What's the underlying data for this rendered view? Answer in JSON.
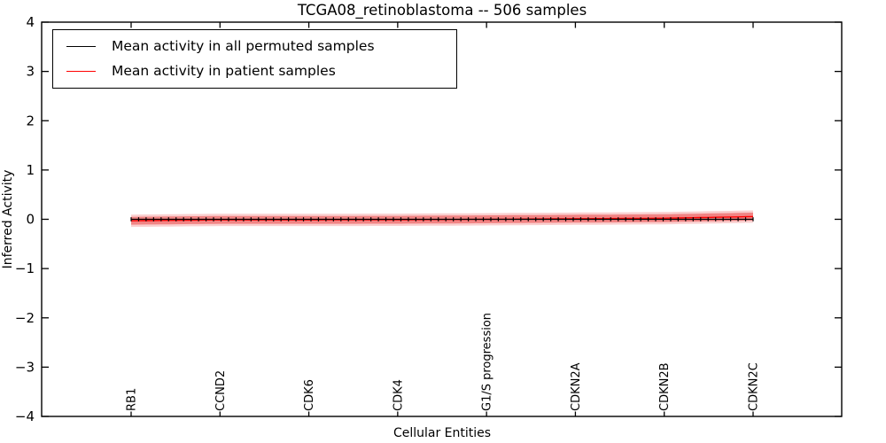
{
  "chart_data": {
    "type": "line",
    "title": "TCGA08_retinoblastoma -- 506 samples",
    "xlabel": "Cellular Entities",
    "ylabel": "Inferred Activity",
    "ylim": [
      -4,
      4
    ],
    "yticks": [
      -4,
      -3,
      -2,
      -1,
      0,
      1,
      2,
      3,
      4
    ],
    "x_categories": [
      "RB1",
      "CCND2",
      "CDK6",
      "CDK4",
      "G1/S progression",
      "CDKN2A",
      "CDKN2B",
      "CDKN2C"
    ],
    "grid": false,
    "legend_position": "upper left",
    "series": [
      {
        "name": "Mean activity in all permuted samples",
        "color": "#000000",
        "marker": "vertical-tick",
        "n_points": 84,
        "values": [
          0,
          0,
          0,
          0,
          0,
          0,
          0,
          0
        ]
      },
      {
        "name": "Mean activity in patient samples",
        "color": "#ff0000",
        "values": [
          -0.03,
          -0.012,
          -0.012,
          -0.01,
          0.0,
          0.012,
          0.022,
          0.055
        ],
        "band_halfwidth_inner": 0.08,
        "band_halfwidth_outer": 0.125,
        "band_color": "#e62828",
        "band_inner_opacity": 0.45,
        "band_outer_opacity": 0.22
      }
    ]
  },
  "legend": {
    "items": [
      {
        "label": "Mean activity in all permuted samples",
        "color": "#000000"
      },
      {
        "label": "Mean activity in patient samples",
        "color": "#ff0000"
      }
    ]
  }
}
